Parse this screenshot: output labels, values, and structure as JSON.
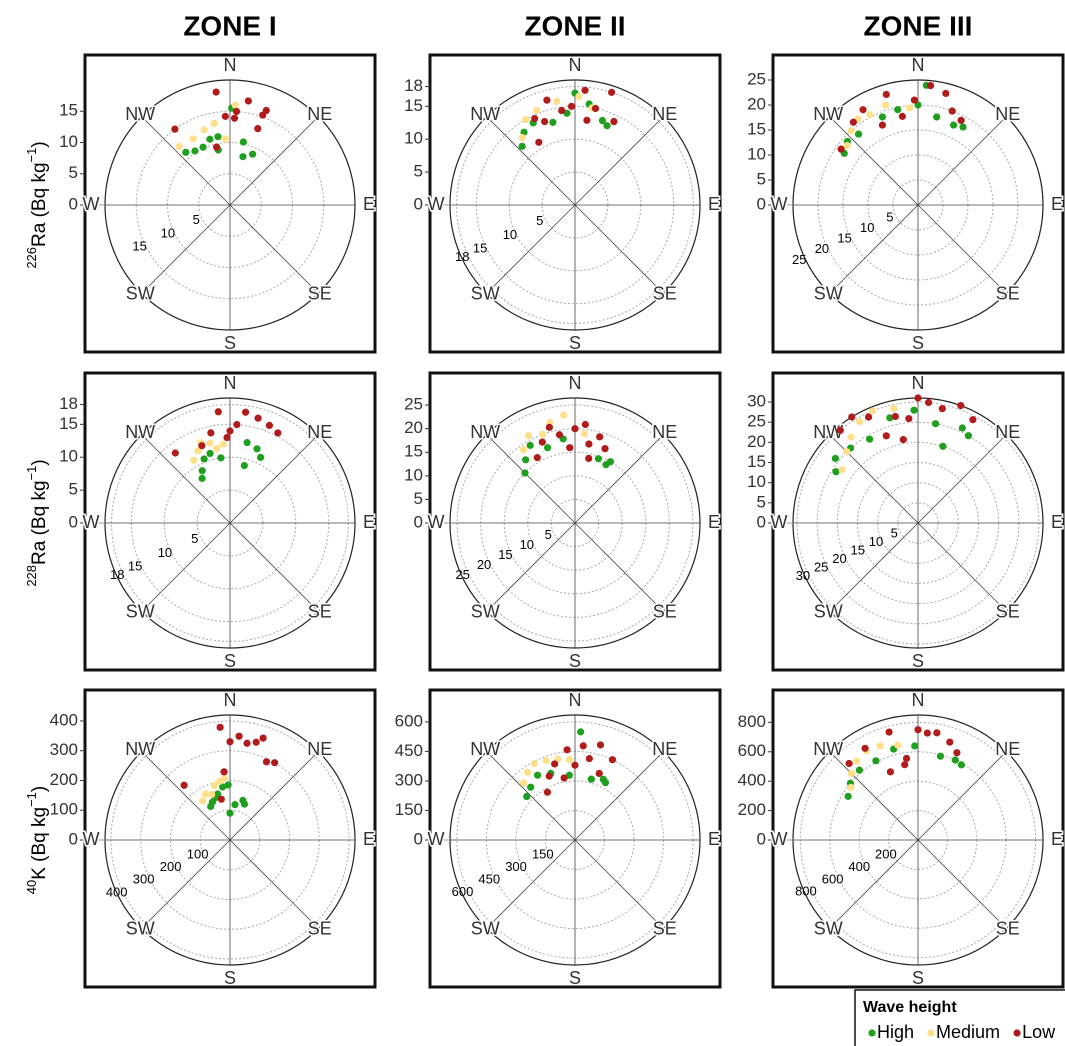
{
  "column_titles": [
    "ZONE I",
    "ZONE II",
    "ZONE III"
  ],
  "row_labels": [
    [
      "226",
      "Ra (Bq kg",
      "−1",
      ")"
    ],
    [
      "228",
      "Ra (Bq kg",
      "−1",
      ")"
    ],
    [
      "40",
      "K (Bq kg",
      "−1",
      ")"
    ]
  ],
  "directions": [
    "N",
    "NE",
    "E",
    "SE",
    "S",
    "SW",
    "W",
    "NW"
  ],
  "legend_title": "Wave height",
  "chart_data": [
    {
      "type": "polar-scatter",
      "rlim": [
        0,
        20
      ],
      "yticks": [
        0,
        5,
        10,
        15
      ],
      "series": [
        {
          "name": "High",
          "color": "#1ea01e",
          "theta": [
            350,
            343,
            335,
            327,
            320,
            12,
            24,
            15,
            348,
            1
          ],
          "r": [
            11.1,
            11,
            10.2,
            10.3,
            11,
            10.3,
            8.9,
            8,
            9,
            15.5
          ]
        },
        {
          "name": "Medium",
          "color": "#ffe08a",
          "theta": [
            319,
            331,
            341,
            356,
            3,
            349
          ],
          "r": [
            12.4,
            12.1,
            12.7,
            10.6,
            16,
            13.3
          ]
        },
        {
          "name": "Low",
          "color": "#b01c1c",
          "theta": [
            324,
            353,
            357,
            3,
            10,
            20,
            21,
            347,
            4,
            20
          ],
          "r": [
            15,
            18.2,
            14.2,
            13.9,
            16.9,
            15.3,
            16.2,
            9.5,
            15,
            13
          ]
        }
      ]
    },
    {
      "type": "polar-scatter",
      "rlim": [
        0,
        19
      ],
      "yticks": [
        0,
        5,
        10,
        15,
        18
      ],
      "series": [
        {
          "name": "High",
          "color": "#1ea01e",
          "theta": [
            318,
            325,
            333,
            345,
            355,
            8,
            18,
            22,
            0
          ],
          "r": [
            12,
            13.5,
            14,
            13,
            14,
            15.5,
            13.5,
            13,
            17
          ]
        },
        {
          "name": "Medium",
          "color": "#ffe08a",
          "theta": [
            322,
            330,
            338,
            350,
            2,
            10
          ],
          "r": [
            13,
            15,
            15.5,
            16,
            16.5,
            15
          ]
        },
        {
          "name": "Low",
          "color": "#b01c1c",
          "theta": [
            330,
            335,
            340,
            345,
            352,
            358,
            5,
            12,
            18,
            25,
            8
          ],
          "r": [
            11,
            14.5,
            13.5,
            16.5,
            14.5,
            15,
            17.5,
            15,
            18,
            14,
            13
          ]
        }
      ]
    },
    {
      "type": "polar-scatter",
      "rlim": [
        0,
        25
      ],
      "yticks": [
        0,
        5,
        10,
        15,
        20,
        25
      ],
      "series": [
        {
          "name": "High",
          "color": "#1ea01e",
          "theta": [
            305,
            312,
            320,
            338,
            348,
            0,
            12,
            24,
            30,
            4
          ],
          "r": [
            18,
            19,
            18.5,
            19,
            19.5,
            20,
            18,
            17.5,
            18,
            24
          ]
        },
        {
          "name": "Medium",
          "color": "#ffe08a",
          "theta": [
            310,
            318,
            325,
            332,
            342,
            355
          ],
          "r": [
            18.5,
            20,
            21,
            20.5,
            21,
            19.5
          ]
        },
        {
          "name": "Low",
          "color": "#b01c1c",
          "theta": [
            306,
            322,
            330,
            336,
            344,
            350,
            358,
            6,
            14,
            20,
            27
          ],
          "r": [
            19,
            21,
            22,
            17.5,
            23,
            18,
            21,
            24,
            23,
            20,
            19
          ]
        }
      ]
    },
    {
      "type": "polar-scatter",
      "rlim": [
        0,
        19
      ],
      "yticks": [
        0,
        5,
        10,
        15,
        18
      ],
      "series": [
        {
          "name": "High",
          "color": "#1ea01e",
          "theta": [
            328,
            332,
            338,
            344,
            352,
            12,
            20,
            25,
            14
          ],
          "r": [
            8,
            9,
            10.5,
            11,
            10,
            12.5,
            12,
            11,
            9
          ]
        },
        {
          "name": "Medium",
          "color": "#ffe08a",
          "theta": [
            330,
            336,
            340,
            346,
            350,
            355
          ],
          "r": [
            11,
            12,
            13,
            12.5,
            11.5,
            12
          ]
        },
        {
          "name": "Low",
          "color": "#b01c1c",
          "theta": [
            322,
            340,
            348,
            354,
            358,
            4,
            8,
            15,
            22,
            28,
            0
          ],
          "r": [
            13.5,
            12.5,
            14,
            17,
            13,
            15,
            17,
            16.5,
            16,
            15.5,
            14
          ]
        }
      ]
    },
    {
      "type": "polar-scatter",
      "rlim": [
        0,
        26.5
      ],
      "yticks": [
        0,
        5,
        10,
        15,
        20,
        25
      ],
      "series": [
        {
          "name": "High",
          "color": "#1ea01e",
          "theta": [
            315,
            322,
            330,
            340,
            352,
            30,
            28,
            20
          ],
          "r": [
            15,
            17,
            19,
            17,
            18,
            15,
            14,
            14.5
          ]
        },
        {
          "name": "Medium",
          "color": "#ffe08a",
          "theta": [
            325,
            332,
            340,
            346,
            354,
            6
          ],
          "r": [
            19,
            21,
            20,
            22,
            23,
            19
          ]
        },
        {
          "name": "Low",
          "color": "#b01c1c",
          "theta": [
            330,
            338,
            345,
            350,
            356,
            0,
            6,
            10,
            16,
            22,
            12
          ],
          "r": [
            16,
            18.5,
            21,
            19,
            16,
            20,
            21,
            17,
            19,
            17,
            14
          ]
        }
      ]
    },
    {
      "type": "polar-scatter",
      "rlim": [
        0,
        31
      ],
      "yticks": [
        0,
        5,
        10,
        15,
        20,
        25,
        30
      ],
      "series": [
        {
          "name": "High",
          "color": "#1ea01e",
          "theta": [
            302,
            308,
            318,
            330,
            345,
            358,
            10,
            25,
            30,
            18
          ],
          "r": [
            24,
            26,
            25,
            24,
            27,
            28,
            25,
            26,
            25,
            20
          ]
        },
        {
          "name": "Medium",
          "color": "#ffe08a",
          "theta": [
            305,
            315,
            322,
            330,
            338,
            348
          ],
          "r": [
            23,
            25,
            27,
            29,
            30,
            29
          ]
        },
        {
          "name": "Low",
          "color": "#b01c1c",
          "theta": [
            320,
            328,
            335,
            340,
            348,
            355,
            0,
            5,
            12,
            20,
            28,
            350
          ],
          "r": [
            30,
            31,
            29,
            23,
            27,
            26,
            31,
            30,
            29,
            31,
            29,
            21
          ]
        }
      ]
    },
    {
      "type": "polar-scatter",
      "rlim": [
        0,
        420
      ],
      "yticks": [
        0,
        100,
        200,
        300,
        400
      ],
      "series": [
        {
          "name": "High",
          "color": "#1ea01e",
          "theta": [
            330,
            335,
            340,
            345,
            352,
            358,
            8,
            18,
            22,
            0
          ],
          "r": [
            130,
            140,
            150,
            160,
            180,
            185,
            120,
            140,
            130,
            90
          ]
        },
        {
          "name": "Medium",
          "color": "#ffe08a",
          "theta": [
            325,
            332,
            338,
            344,
            350,
            355
          ],
          "r": [
            160,
            175,
            165,
            190,
            200,
            210
          ]
        },
        {
          "name": "Low",
          "color": "#b01c1c",
          "theta": [
            320,
            348,
            355,
            0,
            5,
            10,
            15,
            18,
            25,
            30,
            355
          ],
          "r": [
            240,
            140,
            380,
            330,
            350,
            330,
            340,
            360,
            290,
            300,
            230
          ]
        }
      ]
    },
    {
      "type": "polar-scatter",
      "rlim": [
        0,
        635
      ],
      "yticks": [
        0,
        150,
        300,
        450,
        600
      ],
      "series": [
        {
          "name": "High",
          "color": "#1ea01e",
          "theta": [
            312,
            320,
            330,
            340,
            355,
            15,
            25,
            28,
            3
          ],
          "r": [
            330,
            350,
            380,
            360,
            330,
            320,
            340,
            330,
            550
          ]
        },
        {
          "name": "Medium",
          "color": "#ffe08a",
          "theta": [
            318,
            325,
            332,
            340,
            348,
            356
          ],
          "r": [
            390,
            420,
            440,
            430,
            420,
            410
          ]
        },
        {
          "name": "Low",
          "color": "#b01c1c",
          "theta": [
            330,
            338,
            345,
            350,
            355,
            0,
            5,
            10,
            15,
            20,
            25
          ],
          "r": [
            280,
            350,
            400,
            320,
            460,
            380,
            480,
            420,
            500,
            360,
            450
          ]
        }
      ]
    },
    {
      "type": "polar-scatter",
      "rlim": [
        0,
        850
      ],
      "yticks": [
        0,
        200,
        400,
        600,
        800
      ],
      "series": [
        {
          "name": "High",
          "color": "#1ea01e",
          "theta": [
            302,
            310,
            320,
            332,
            345,
            358,
            15,
            25,
            30
          ],
          "r": [
            560,
            600,
            620,
            610,
            640,
            640,
            590,
            600,
            590
          ]
        },
        {
          "name": "Medium",
          "color": "#ffe08a",
          "theta": [
            308,
            315,
            322,
            330,
            338,
            348
          ],
          "r": [
            580,
            640,
            680,
            700,
            690,
            660
          ]
        },
        {
          "name": "Low",
          "color": "#b01c1c",
          "theta": [
            318,
            330,
            338,
            345,
            352,
            0,
            5,
            10,
            18,
            24,
            350
          ],
          "r": [
            700,
            720,
            500,
            760,
            560,
            750,
            730,
            740,
            700,
            650,
            520
          ]
        }
      ]
    }
  ]
}
